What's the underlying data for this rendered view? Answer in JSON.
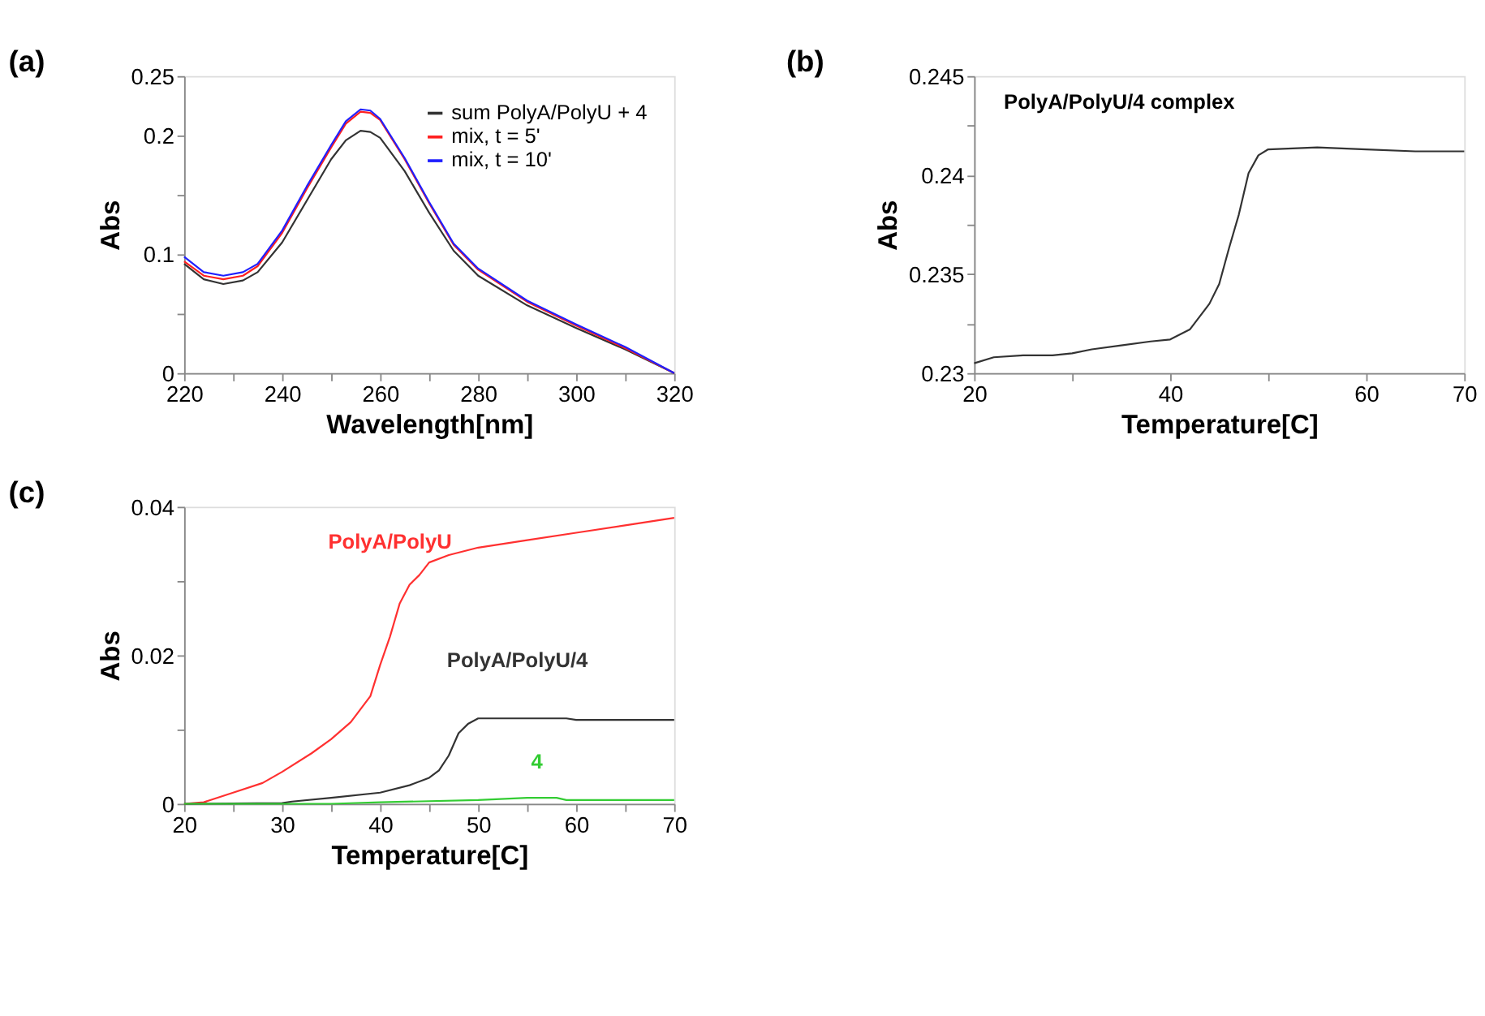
{
  "chart_data": [
    {
      "type": "line",
      "title": "(a)",
      "xlabel": "Wavelength[nm]",
      "ylabel": "Abs",
      "legend": "top right",
      "xlim": [
        220,
        320
      ],
      "xticks": [
        220,
        {
          "value": 230,
          "label": null
        },
        240,
        {
          "value": 250,
          "label": null
        },
        260,
        {
          "value": 270,
          "label": null
        },
        280,
        {
          "value": 290,
          "label": null
        },
        300,
        {
          "value": 310,
          "label": null
        },
        320
      ],
      "ylim": [
        0,
        0.25
      ],
      "yticks": [
        0,
        {
          "value": 0.05,
          "label": null
        },
        0.1,
        {
          "value": 0.15,
          "label": null
        },
        0.2,
        0.25
      ],
      "x": [
        220,
        224,
        228,
        232,
        235,
        240,
        245,
        250,
        253,
        256,
        258,
        260,
        265,
        270,
        275,
        280,
        290,
        300,
        310,
        320
      ],
      "series": [
        {
          "name": "sum PolyA/PolyU + 4",
          "color": "#333333",
          "values": [
            0.092,
            0.079,
            0.075,
            0.078,
            0.085,
            0.11,
            0.145,
            0.18,
            0.196,
            0.204,
            0.203,
            0.198,
            0.17,
            0.135,
            0.103,
            0.082,
            0.057,
            0.038,
            0.02,
            0
          ]
        },
        {
          "name": "mix, t = 5'",
          "color": "#ff2020",
          "values": [
            0.094,
            0.082,
            0.079,
            0.082,
            0.09,
            0.118,
            0.155,
            0.19,
            0.21,
            0.22,
            0.219,
            0.213,
            0.18,
            0.143,
            0.108,
            0.087,
            0.06,
            0.04,
            0.021,
            0
          ]
        },
        {
          "name": "mix, t = 10'",
          "color": "#2020ff",
          "values": [
            0.098,
            0.085,
            0.082,
            0.085,
            0.092,
            0.12,
            0.157,
            0.192,
            0.212,
            0.222,
            0.221,
            0.214,
            0.181,
            0.144,
            0.109,
            0.088,
            0.061,
            0.041,
            0.022,
            0
          ]
        }
      ]
    },
    {
      "type": "line",
      "title": "(b)",
      "subtitle": "PolyA/PolyU/4 complex",
      "xlabel": "Temperature[C]",
      "ylabel": "Abs",
      "xlim": [
        20,
        70
      ],
      "xticks": [
        20,
        {
          "value": 30,
          "label": null
        },
        40,
        {
          "value": 50,
          "label": null
        },
        60,
        70
      ],
      "ylim": [
        0.23,
        0.245
      ],
      "yticks": [
        0.23,
        {
          "value": 0.2325,
          "label": null
        },
        0.235,
        {
          "value": 0.2375,
          "label": null
        },
        0.24,
        {
          "value": 0.2425,
          "label": null
        },
        0.245
      ],
      "x": [
        20,
        22,
        25,
        28,
        30,
        32,
        35,
        38,
        40,
        42,
        44,
        45,
        46,
        47,
        48,
        49,
        50,
        55,
        60,
        65,
        70
      ],
      "series": [
        {
          "color": "#333333",
          "values": [
            0.2305,
            0.2308,
            0.2309,
            0.2309,
            0.231,
            0.2312,
            0.2314,
            0.2316,
            0.2317,
            0.2322,
            0.2335,
            0.2345,
            0.2363,
            0.238,
            0.2401,
            0.241,
            0.2413,
            0.2414,
            0.2413,
            0.2412,
            0.2412
          ]
        }
      ]
    },
    {
      "type": "line",
      "title": "(c)",
      "xlabel": "Temperature[C]",
      "ylabel": "Abs",
      "xlim": [
        20,
        70
      ],
      "xticks": [
        20,
        {
          "value": 25,
          "label": null
        },
        30,
        {
          "value": 35,
          "label": null
        },
        40,
        {
          "value": 45,
          "label": null
        },
        50,
        {
          "value": 55,
          "label": null
        },
        60,
        {
          "value": 65,
          "label": null
        },
        70
      ],
      "ylim": [
        0,
        0.04
      ],
      "yticks": [
        0,
        {
          "value": 0.01,
          "label": null
        },
        0.02,
        {
          "value": 0.03,
          "label": null
        },
        0.04
      ],
      "series": [
        {
          "name": "PolyA/PolyU",
          "color": "#ff3030",
          "x": [
            20,
            22,
            25,
            28,
            30,
            33,
            35,
            37,
            39,
            40,
            41,
            42,
            43,
            44,
            45,
            47,
            50,
            55,
            60,
            65,
            70
          ],
          "values": [
            0,
            0.0002,
            0.0015,
            0.0028,
            0.0043,
            0.0068,
            0.0087,
            0.011,
            0.0145,
            0.0187,
            0.0225,
            0.027,
            0.0295,
            0.0308,
            0.0325,
            0.0335,
            0.0345,
            0.0355,
            0.0365,
            0.0375,
            0.0385
          ]
        },
        {
          "name": "PolyA/PolyU/4",
          "color": "#333333",
          "x": [
            20,
            30,
            31,
            35,
            40,
            43,
            45,
            46,
            47,
            48,
            49,
            50,
            55,
            59,
            60,
            70
          ],
          "values": [
            0,
            0.0001,
            0.0003,
            0.0008,
            0.0015,
            0.0025,
            0.0035,
            0.0045,
            0.0065,
            0.0095,
            0.0108,
            0.0115,
            0.0115,
            0.0115,
            0.0113,
            0.0113
          ]
        },
        {
          "name": "4",
          "color": "#33cc33",
          "x": [
            20,
            35,
            40,
            50,
            55,
            58,
            59,
            70
          ],
          "values": [
            0,
            0,
            0.0002,
            0.0005,
            0.0008,
            0.0008,
            0.0005,
            0.0005
          ]
        }
      ]
    }
  ]
}
